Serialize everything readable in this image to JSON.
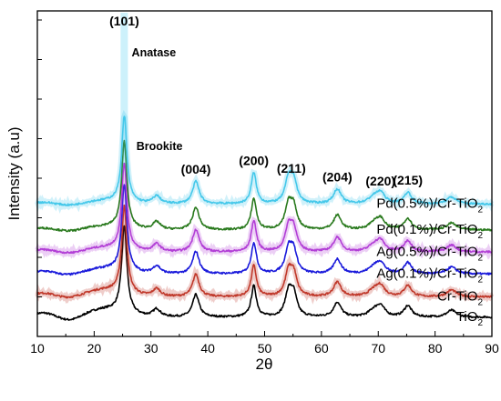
{
  "chart_data": {
    "type": "line",
    "xlabel": "2θ",
    "ylabel": "Intensity (a.u)",
    "xlim": [
      10,
      90
    ],
    "x_ticks": [
      "10",
      "20",
      "30",
      "40",
      "50",
      "60",
      "70",
      "80",
      "90"
    ],
    "y_tick_labels": "none",
    "grid": false,
    "peaks": [
      {
        "position": 25.3,
        "height": 10.0,
        "width": 0.55
      },
      {
        "position": 31.0,
        "height": 0.9,
        "width": 0.8
      },
      {
        "position": 37.9,
        "height": 2.6,
        "width": 0.7
      },
      {
        "position": 48.1,
        "height": 3.6,
        "width": 0.55
      },
      {
        "position": 54.2,
        "height": 2.7,
        "width": 0.7
      },
      {
        "position": 55.1,
        "height": 2.5,
        "width": 0.7
      },
      {
        "position": 62.8,
        "height": 1.7,
        "width": 0.8
      },
      {
        "position": 69.2,
        "height": 0.7,
        "width": 1.1
      },
      {
        "position": 70.4,
        "height": 1.2,
        "width": 0.9
      },
      {
        "position": 75.2,
        "height": 1.3,
        "width": 0.8
      },
      {
        "position": 82.9,
        "height": 0.8,
        "width": 1.0
      }
    ],
    "series": [
      {
        "name": "TiO2",
        "name_main": "TiO",
        "name_sub": "2",
        "offset": 0.0,
        "color": "#000000",
        "shadow": false,
        "broad_hump": 1.0
      },
      {
        "name": "Cr-TiO2",
        "name_main": "Cr-TiO",
        "name_sub": "2",
        "offset": 2.35,
        "color": "#c0392b",
        "shadow": true,
        "broad_hump": 0.9
      },
      {
        "name": "Ag(0.1%)/Cr-TiO2",
        "name_main": "Ag(0.1%)/Cr-TiO",
        "name_sub": "2",
        "offset": 5.0,
        "color": "#1a1adb",
        "shadow": false,
        "broad_hump": 0.7
      },
      {
        "name": "Ag(0.5%)/Cr-TiO2",
        "name_main": "Ag(0.5%)/Cr-TiO",
        "name_sub": "2",
        "offset": 7.55,
        "color": "#b23fd6",
        "shadow": true,
        "broad_hump": 0.55
      },
      {
        "name": "Pd(0.1%)/Cr-TiO2",
        "name_main": "Pd(0.1%)/Cr-TiO",
        "name_sub": "2",
        "offset": 10.1,
        "color": "#2a7a1e",
        "shadow": false,
        "broad_hump": 0.45
      },
      {
        "name": "Pd(0.5%)/Cr-TiO2",
        "name_main": "Pd(0.5%)/Cr-TiO",
        "name_sub": "2",
        "offset": 13.1,
        "color": "#45c8ea",
        "shadow": true,
        "broad_hump": 0.4
      }
    ],
    "annotations": [
      {
        "text": "(101)",
        "x": 25.3,
        "kind": "peak"
      },
      {
        "text": "Anatase",
        "x": 30.5,
        "kind": "phase"
      },
      {
        "text": "Brookite",
        "x": 31.5,
        "kind": "phase"
      },
      {
        "text": "(004)",
        "x": 37.9,
        "kind": "peak"
      },
      {
        "text": "(200)",
        "x": 48.1,
        "kind": "peak"
      },
      {
        "text": "(211)",
        "x": 54.7,
        "kind": "peak"
      },
      {
        "text": "(204)",
        "x": 62.8,
        "kind": "peak"
      },
      {
        "text": "(220)",
        "x": 70.4,
        "kind": "peak"
      },
      {
        "text": "(215)",
        "x": 75.2,
        "kind": "peak"
      }
    ]
  }
}
